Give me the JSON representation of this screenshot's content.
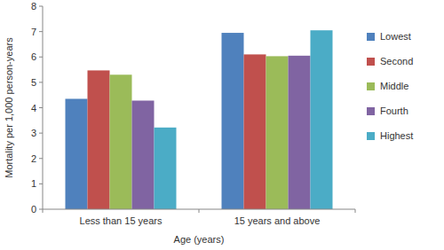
{
  "chart_data": {
    "type": "bar",
    "x_label": "Age (years)",
    "y_label": "Mortality per 1,000 person-years",
    "categories": [
      "Less than 15 years",
      "15 years and above"
    ],
    "series": [
      {
        "name": "Lowest",
        "color": "#4f81bd",
        "values": [
          4.35,
          6.95
        ]
      },
      {
        "name": "Second",
        "color": "#c0504d",
        "values": [
          5.47,
          6.1
        ]
      },
      {
        "name": "Middle",
        "color": "#9bbb59",
        "values": [
          5.3,
          6.03
        ]
      },
      {
        "name": "Fourth",
        "color": "#8064a2",
        "values": [
          4.28,
          6.05
        ]
      },
      {
        "name": "Highest",
        "color": "#4bacc6",
        "values": [
          3.22,
          7.05
        ]
      }
    ],
    "ylim": [
      0,
      8
    ],
    "yticks": [
      0,
      1,
      2,
      3,
      4,
      5,
      6,
      7,
      8
    ],
    "grid": false,
    "legend": "right"
  }
}
